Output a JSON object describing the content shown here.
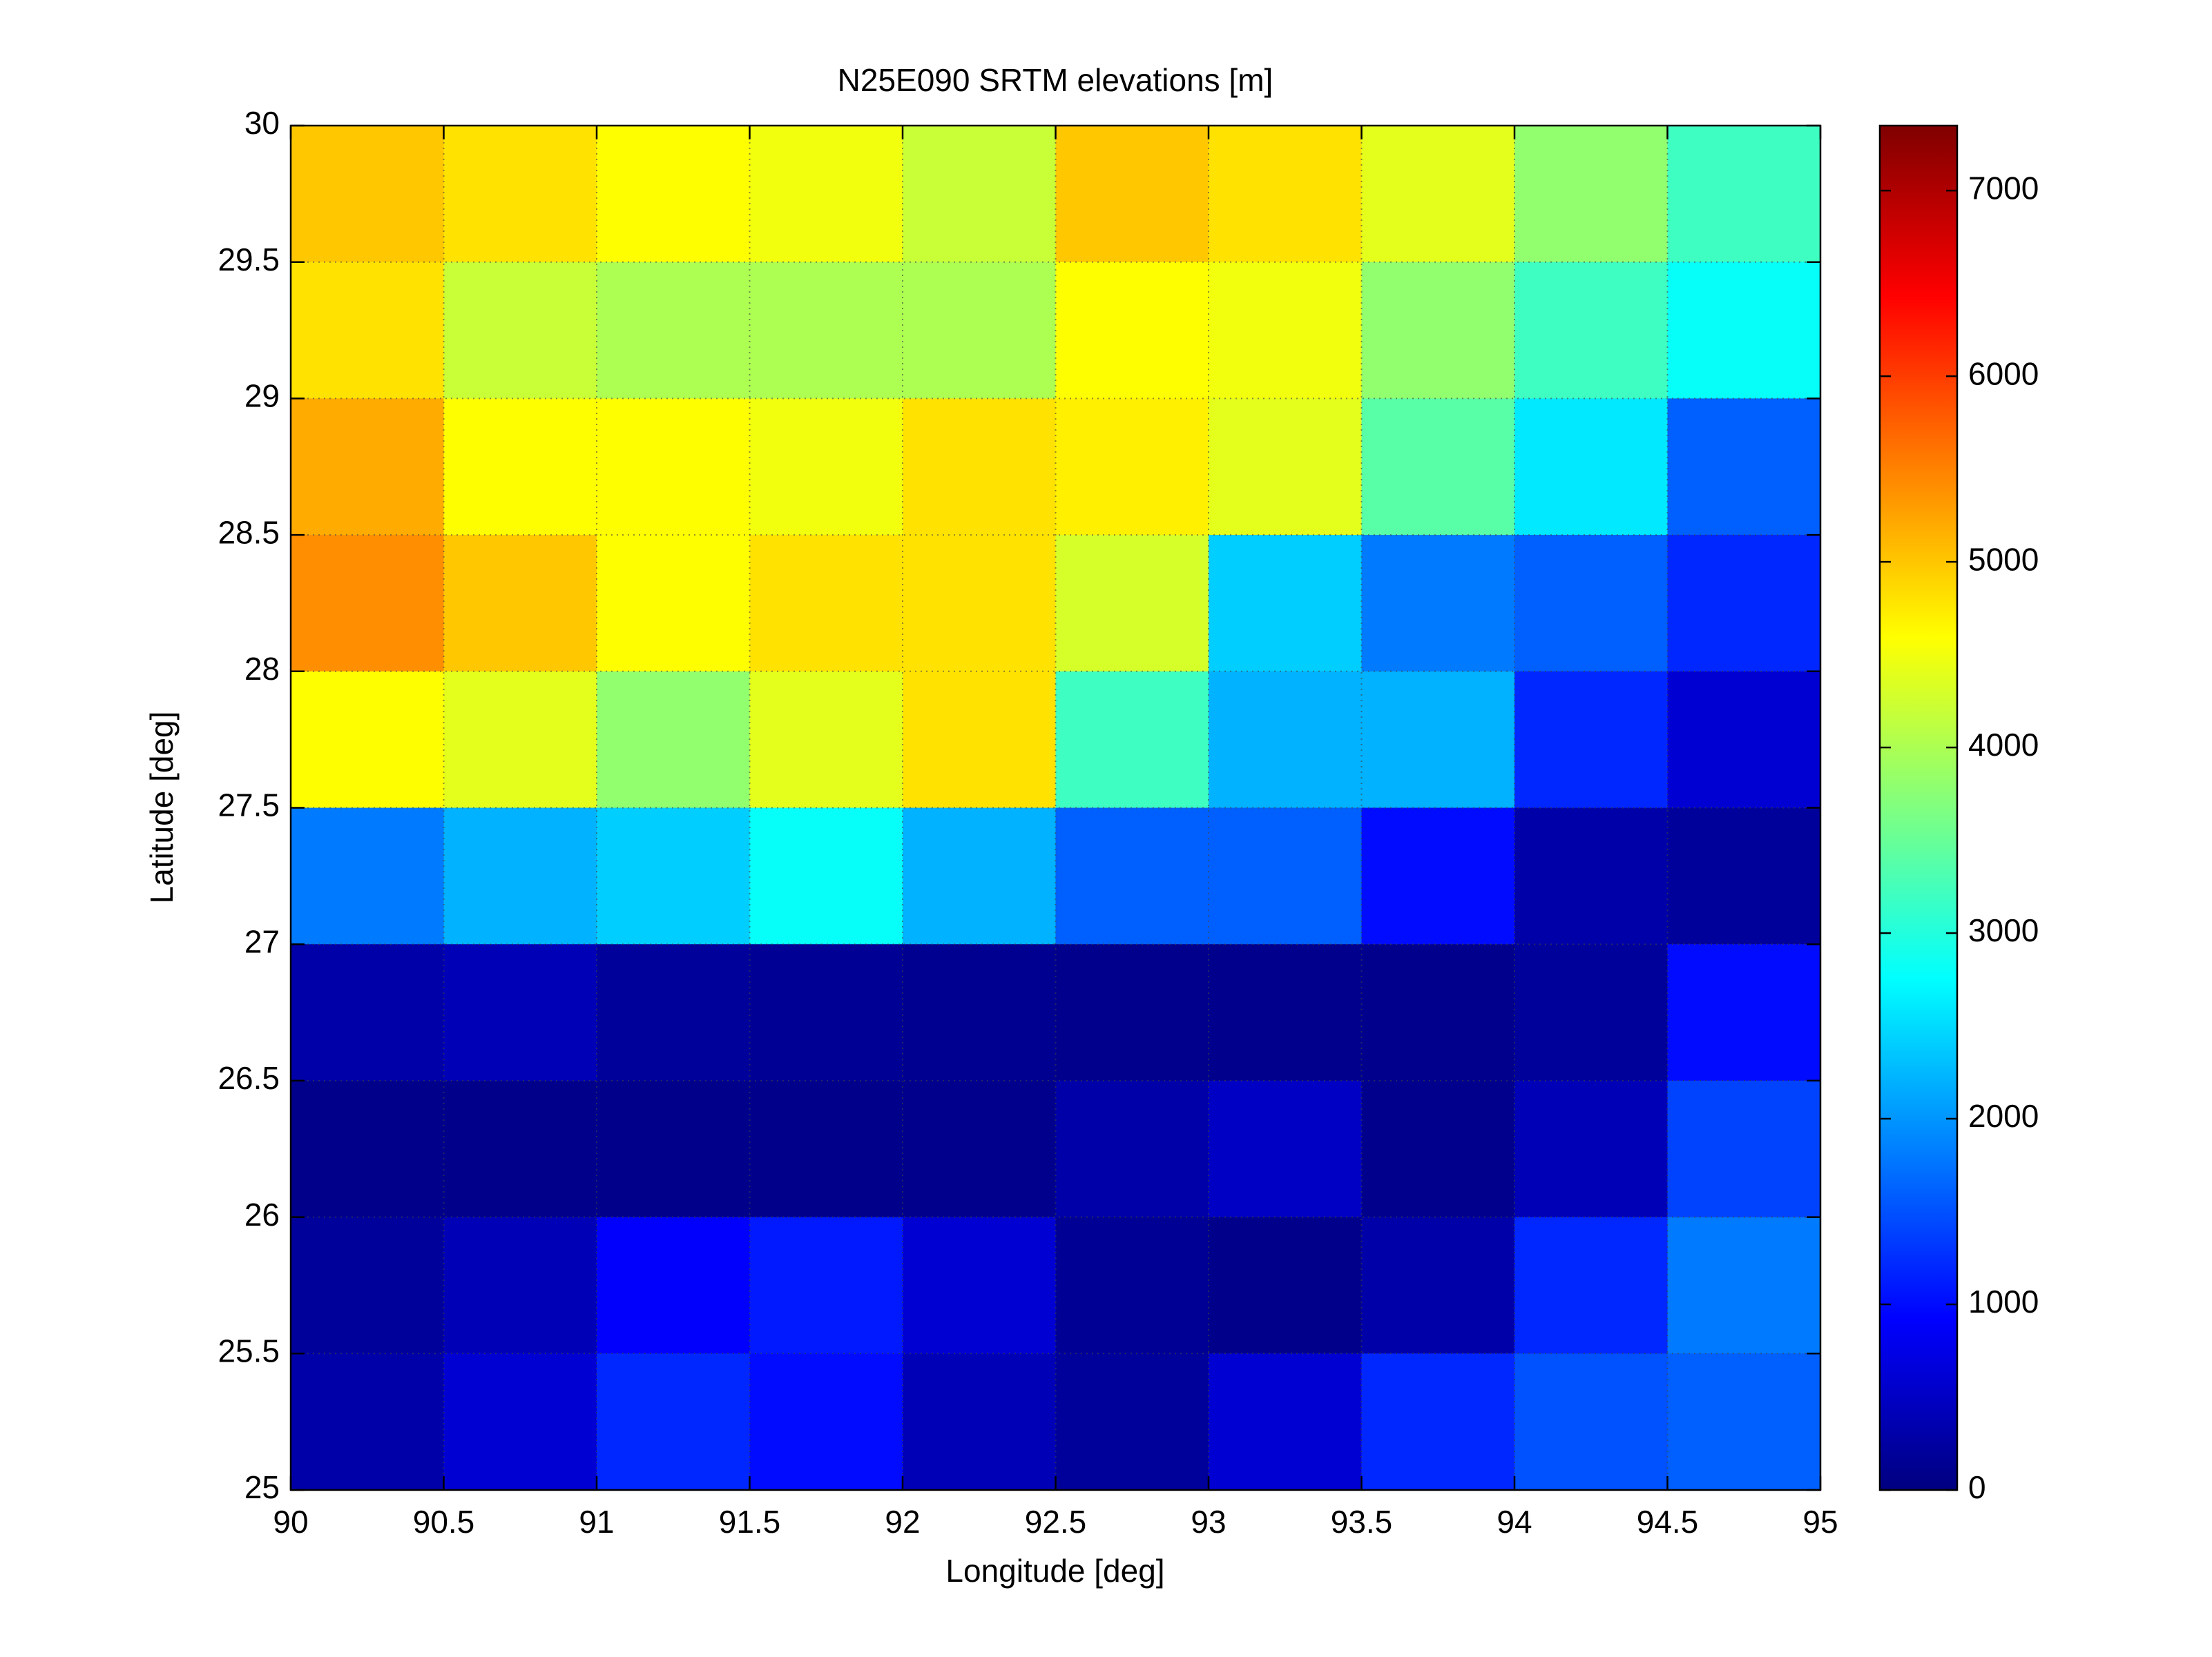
{
  "chart_data": {
    "type": "heatmap",
    "title": "N25E090 SRTM elevations [m]",
    "xlabel": "Longitude [deg]",
    "ylabel": "Latitude [deg]",
    "x": [
      90.25,
      90.75,
      91.25,
      91.75,
      92.25,
      92.75,
      93.25,
      93.75,
      94.25,
      94.75
    ],
    "y": [
      29.75,
      29.25,
      28.75,
      28.25,
      27.75,
      27.25,
      26.75,
      26.25,
      25.75,
      25.25
    ],
    "values": [
      [
        5000,
        4800,
        4600,
        4500,
        4200,
        5000,
        4800,
        4400,
        3800,
        3200
      ],
      [
        4800,
        4200,
        4000,
        4000,
        4000,
        4600,
        4500,
        3800,
        3200,
        2800
      ],
      [
        5200,
        4600,
        4600,
        4500,
        4800,
        4700,
        4400,
        3400,
        2600,
        1600
      ],
      [
        5400,
        5000,
        4600,
        4800,
        4800,
        4300,
        2400,
        1800,
        1600,
        1200
      ],
      [
        4600,
        4400,
        3800,
        4400,
        4800,
        3200,
        2200,
        2200,
        1200,
        600
      ],
      [
        1800,
        2200,
        2400,
        2800,
        2200,
        1600,
        1600,
        1000,
        300,
        200
      ],
      [
        300,
        400,
        200,
        150,
        120,
        100,
        100,
        100,
        200,
        1000
      ],
      [
        80,
        80,
        80,
        80,
        100,
        300,
        500,
        100,
        400,
        1400
      ],
      [
        200,
        400,
        900,
        1100,
        600,
        150,
        80,
        300,
        1200,
        1800
      ],
      [
        300,
        600,
        1200,
        1000,
        400,
        200,
        600,
        1200,
        1500,
        1600
      ]
    ],
    "colormap": "jet",
    "clim": [
      0,
      7350
    ],
    "cticks": [
      0,
      1000,
      2000,
      3000,
      4000,
      5000,
      6000,
      7000
    ],
    "xlim": [
      90,
      95
    ],
    "xticks": [
      90,
      90.5,
      91,
      91.5,
      92,
      92.5,
      93,
      93.5,
      94,
      94.5,
      95
    ],
    "ylim": [
      25,
      30
    ],
    "yticks": [
      25,
      25.5,
      26,
      26.5,
      27,
      27.5,
      28,
      28.5,
      29,
      29.5,
      30
    ],
    "grid": true
  }
}
